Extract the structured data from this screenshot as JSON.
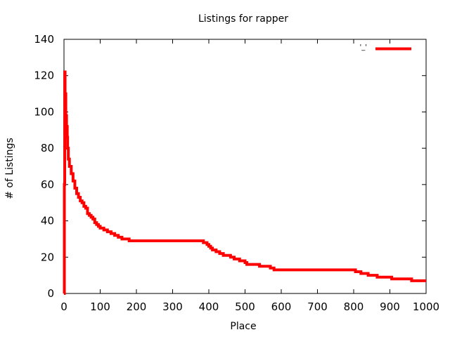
{
  "chart_data": {
    "type": "line",
    "title": "Listings for rapper",
    "xlabel": "Place",
    "ylabel": "# of Listings",
    "xlim": [
      0,
      1000
    ],
    "ylim": [
      0,
      140
    ],
    "xticks": [
      0,
      100,
      200,
      300,
      400,
      500,
      600,
      700,
      800,
      900,
      1000
    ],
    "yticks": [
      0,
      20,
      40,
      60,
      80,
      100,
      120,
      140
    ],
    "xtick_labels": [
      "0",
      "100",
      "200",
      "300",
      "400",
      "500",
      "600",
      "700",
      "800",
      "900",
      "1000"
    ],
    "ytick_labels": [
      "0",
      "20",
      "40",
      "60",
      "80",
      "100",
      "120",
      "140"
    ],
    "grid": false,
    "legend_position": "top-right",
    "line_color": "#ff0000",
    "series": [
      {
        "name": "'_'",
        "style": "steps",
        "points": [
          [
            0,
            0
          ],
          [
            1,
            60
          ],
          [
            2,
            122
          ],
          [
            3,
            110
          ],
          [
            5,
            98
          ],
          [
            7,
            92
          ],
          [
            9,
            86
          ],
          [
            10,
            80
          ],
          [
            12,
            74
          ],
          [
            15,
            70
          ],
          [
            20,
            66
          ],
          [
            25,
            62
          ],
          [
            30,
            58
          ],
          [
            35,
            55
          ],
          [
            40,
            53
          ],
          [
            45,
            51
          ],
          [
            50,
            50
          ],
          [
            55,
            48
          ],
          [
            60,
            47
          ],
          [
            65,
            44
          ],
          [
            70,
            43
          ],
          [
            75,
            42
          ],
          [
            80,
            41
          ],
          [
            85,
            39
          ],
          [
            90,
            38
          ],
          [
            95,
            37
          ],
          [
            100,
            36
          ],
          [
            110,
            35
          ],
          [
            120,
            34
          ],
          [
            130,
            33
          ],
          [
            140,
            32
          ],
          [
            150,
            31
          ],
          [
            160,
            30
          ],
          [
            180,
            29
          ],
          [
            380,
            29
          ],
          [
            385,
            28
          ],
          [
            395,
            27
          ],
          [
            400,
            26
          ],
          [
            405,
            25
          ],
          [
            410,
            24
          ],
          [
            420,
            23
          ],
          [
            430,
            22
          ],
          [
            440,
            21
          ],
          [
            460,
            20
          ],
          [
            470,
            19
          ],
          [
            485,
            18
          ],
          [
            500,
            17
          ],
          [
            505,
            16
          ],
          [
            530,
            16
          ],
          [
            540,
            15
          ],
          [
            560,
            15
          ],
          [
            570,
            14
          ],
          [
            580,
            13
          ],
          [
            800,
            13
          ],
          [
            805,
            12
          ],
          [
            820,
            11
          ],
          [
            840,
            10
          ],
          [
            860,
            10
          ],
          [
            865,
            9
          ],
          [
            900,
            9
          ],
          [
            905,
            8
          ],
          [
            960,
            7
          ],
          [
            1000,
            7
          ]
        ]
      }
    ]
  }
}
